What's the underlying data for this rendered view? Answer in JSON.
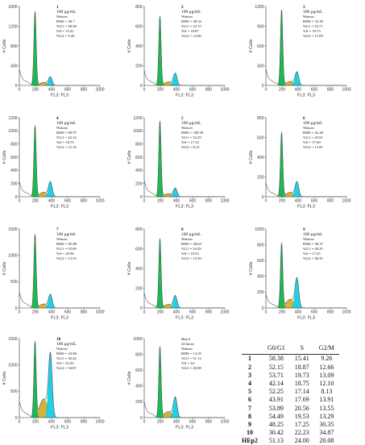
{
  "colors": {
    "g1": "#1db954",
    "s": "#d6b23a",
    "g2": "#1fd0e6",
    "trace": "#555555"
  },
  "chart_data": [
    {
      "type": "area",
      "id": "1",
      "ylim": [
        0,
        1600
      ],
      "yticks": [
        0,
        400,
        800,
        1200,
        1600
      ],
      "xlim": [
        0,
        1000
      ],
      "xticks": [
        0,
        200,
        400,
        600,
        800,
        1000
      ],
      "ylabel": "# Cells",
      "xlabel": "FL3: FL3",
      "conc": "100 μg/mL",
      "model": "Watson",
      "rms": "39.7",
      "g1": "58.38",
      "s": "15.41",
      "g2": "9.26",
      "peak": 1500
    },
    {
      "type": "area",
      "id": "2",
      "ylim": [
        0,
        800
      ],
      "yticks": [
        0,
        200,
        400,
        600,
        800
      ],
      "xlim": [
        0,
        1000
      ],
      "xticks": [
        0,
        200,
        400,
        600,
        800,
        1000
      ],
      "ylabel": "# Cells",
      "xlabel": "FL3: FL3",
      "conc": "100 μg/mL",
      "model": "Watson",
      "rms": "40.33",
      "g1": "52.15",
      "s": "18.87",
      "g2": "12.66",
      "peak": 700
    },
    {
      "type": "area",
      "id": "3",
      "ylim": [
        0,
        1200
      ],
      "yticks": [
        0,
        300,
        600,
        900,
        1200
      ],
      "xlim": [
        0,
        1000
      ],
      "xticks": [
        0,
        200,
        400,
        600,
        800,
        1000
      ],
      "ylabel": "# Cells",
      "xlabel": "FL3: FL3",
      "conc": "100 μg/mL",
      "model": "Watson",
      "rms": "32.49",
      "g1": "53.71",
      "s": "19.73",
      "g2": "13.09",
      "peak": 1150
    },
    {
      "type": "area",
      "id": "4",
      "ylim": [
        0,
        1200
      ],
      "yticks": [
        0,
        200,
        400,
        600,
        800,
        1000,
        1200
      ],
      "xlim": [
        0,
        1000
      ],
      "xticks": [
        0,
        200,
        400,
        600,
        800,
        1000
      ],
      "ylabel": "# Cells",
      "xlabel": "FL3: FL3",
      "conc": "100 μg/mL",
      "model": "Watson",
      "rms": "69.97",
      "g1": "42.14",
      "s": "18.75",
      "g2": "12.10",
      "peak": 1080
    },
    {
      "type": "area",
      "id": "5",
      "ylim": [
        0,
        1200
      ],
      "yticks": [
        0,
        200,
        400,
        600,
        800,
        1000,
        1200
      ],
      "xlim": [
        0,
        1000
      ],
      "xticks": [
        0,
        200,
        400,
        600,
        800,
        1000
      ],
      "ylabel": "# Cells",
      "xlabel": "FL3: FL3",
      "conc": "100 μg/mL",
      "model": "Watson",
      "rms": "108.39",
      "g1": "52.25",
      "s": "17.14",
      "g2": "8.13",
      "peak": 1150
    },
    {
      "type": "area",
      "id": "6",
      "ylim": [
        0,
        800
      ],
      "yticks": [
        0,
        200,
        400,
        600,
        800
      ],
      "xlim": [
        0,
        1000
      ],
      "xticks": [
        0,
        200,
        400,
        600,
        800,
        1000
      ],
      "ylabel": "# Cells",
      "xlabel": "FL3: FL3",
      "conc": "100 μg/mL",
      "model": "Watson",
      "rms": "42.49",
      "g1": "43.91",
      "s": "17.69",
      "g2": "13.91",
      "peak": 650
    },
    {
      "type": "area",
      "id": "7",
      "ylim": [
        0,
        1500
      ],
      "yticks": [
        0,
        500,
        1000,
        1500
      ],
      "xlim": [
        0,
        1000
      ],
      "xticks": [
        0,
        200,
        400,
        600,
        800,
        1000
      ],
      "ylabel": "# Cells",
      "xlabel": "FL3: FL3",
      "conc": "100 μg/mL",
      "model": "Watson",
      "rms": "85.88",
      "g1": "53.89",
      "s": "20.56",
      "g2": "13.55",
      "peak": 1400
    },
    {
      "type": "area",
      "id": "8",
      "ylim": [
        0,
        800
      ],
      "yticks": [
        0,
        200,
        400,
        600,
        800
      ],
      "xlim": [
        0,
        1000
      ],
      "xticks": [
        0,
        200,
        400,
        600,
        800,
        1000
      ],
      "ylabel": "# Cells",
      "xlabel": "FL3: FL3",
      "conc": "100 μg/mL",
      "model": "Watson",
      "rms": "28.63",
      "g1": "54.49",
      "s": "19.53",
      "g2": "13.29",
      "peak": 700
    },
    {
      "type": "area",
      "id": "9",
      "ylim": [
        0,
        1000
      ],
      "yticks": [
        0,
        200,
        400,
        600,
        800,
        1000
      ],
      "xlim": [
        0,
        1000
      ],
      "xticks": [
        0,
        200,
        400,
        600,
        800,
        1000
      ],
      "ylabel": "# Cells",
      "xlabel": "FL3: FL3",
      "conc": "100 μg/mL",
      "model": "Watson",
      "rms": "40.37",
      "g1": "48.25",
      "s": "17.25",
      "g2": "30.35",
      "peak": 820
    },
    {
      "type": "area",
      "id": "10",
      "ylim": [
        0,
        1500
      ],
      "yticks": [
        0,
        500,
        1000,
        1500
      ],
      "xlim": [
        0,
        1000
      ],
      "xticks": [
        0,
        200,
        400,
        600,
        800,
        1000
      ],
      "ylabel": "# Cells",
      "xlabel": "FL3: FL3",
      "conc": "100 μg/mL",
      "model": "Watson",
      "rms": "23.86",
      "g1": "30.42",
      "s": "22.23",
      "g2": "34.87",
      "peak": 1450
    },
    {
      "type": "area",
      "id": "",
      "title_lines": [
        "Hep-2",
        "24 hours"
      ],
      "ylim": [
        0,
        1000
      ],
      "yticks": [
        0,
        200,
        400,
        600,
        800,
        1000
      ],
      "xlim": [
        0,
        1000
      ],
      "xticks": [
        0,
        200,
        400,
        600,
        800,
        1000
      ],
      "ylabel": "# Cells",
      "xlabel": "FL3: FL3",
      "conc": "",
      "model": "Watson",
      "rms": "13.05",
      "g1": "51.13",
      "s": "24",
      "g2": "20.08",
      "peak": 900
    },
    {
      "type": "table",
      "columns": [
        "",
        "G0/G1",
        "S",
        "G2/M"
      ],
      "rows": [
        [
          "1",
          "58.38",
          "15.41",
          "9.26"
        ],
        [
          "2",
          "52.15",
          "18.87",
          "12.66"
        ],
        [
          "3",
          "53.71",
          "19.73",
          "13.09"
        ],
        [
          "4",
          "42.14",
          "18.75",
          "12.10"
        ],
        [
          "5",
          "52.25",
          "17.14",
          "8.13"
        ],
        [
          "6",
          "43.91",
          "17.69",
          "13.91"
        ],
        [
          "7",
          "53.89",
          "20.56",
          "13.55"
        ],
        [
          "8",
          "54.49",
          "19.53",
          "13.29"
        ],
        [
          "9",
          "48.25",
          "17.25",
          "30.35"
        ],
        [
          "10",
          "30.42",
          "22.23",
          "34.87"
        ],
        [
          "HEp2",
          "51.13",
          "24.00",
          "20.08"
        ]
      ]
    }
  ]
}
